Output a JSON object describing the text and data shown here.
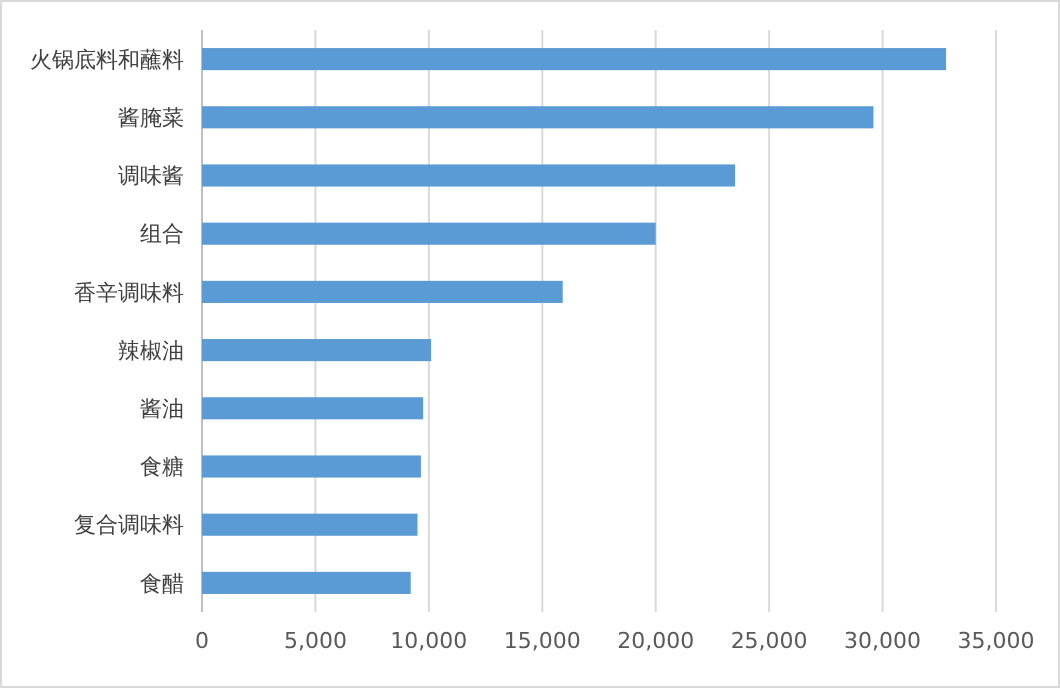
{
  "chart_data": {
    "type": "bar",
    "orientation": "horizontal",
    "categories": [
      "火锅底料和蘸料",
      "酱腌菜",
      "调味酱",
      "组合",
      "香辛调味料",
      "辣椒油",
      "酱油",
      "食糖",
      "复合调味料",
      "食醋"
    ],
    "values": [
      32800,
      29600,
      23500,
      20000,
      15900,
      10100,
      9750,
      9650,
      9500,
      9200
    ],
    "color": "#5b9bd5",
    "xlim": [
      0,
      35000
    ],
    "xticks": [
      {
        "value": 0,
        "label": "0"
      },
      {
        "value": 5000,
        "label": "5,000"
      },
      {
        "value": 10000,
        "label": "10,000"
      },
      {
        "value": 15000,
        "label": "15,000"
      },
      {
        "value": 20000,
        "label": "20,000"
      },
      {
        "value": 25000,
        "label": "25,000"
      },
      {
        "value": 30000,
        "label": "30,000"
      },
      {
        "value": 35000,
        "label": "35,000"
      }
    ],
    "grid": "x"
  }
}
